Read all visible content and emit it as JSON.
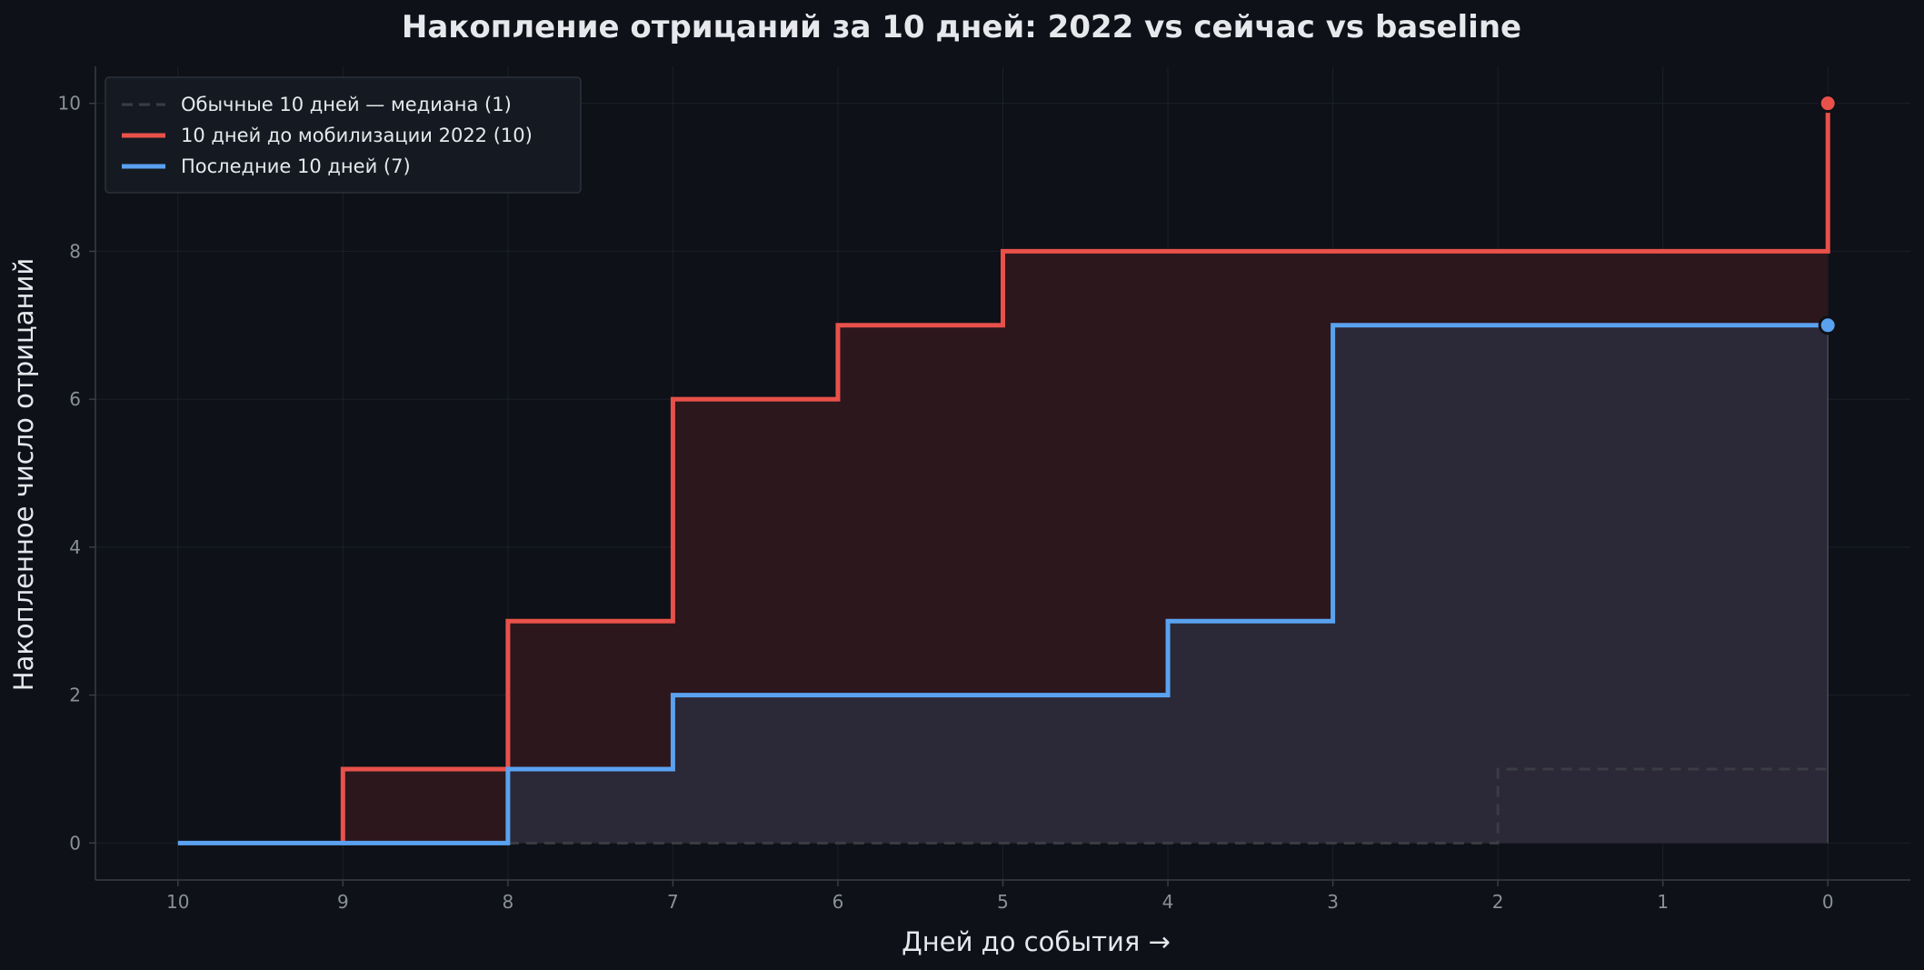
{
  "chart_data": {
    "type": "line",
    "step": "post",
    "title": "Накопление отрицаний за 10 дней: 2022 vs сейчас vs baseline",
    "xlabel": "Дней до события →",
    "ylabel": "Накопленное число отрицаний",
    "x_ticks": [
      10,
      9,
      8,
      7,
      6,
      5,
      4,
      3,
      2,
      1,
      0
    ],
    "y_ticks": [
      0,
      2,
      4,
      6,
      8,
      10
    ],
    "xlim": [
      10.5,
      -0.5
    ],
    "ylim": [
      -0.5,
      10.5
    ],
    "x_reversed": true,
    "grid": true,
    "legend_position": "top-left",
    "series": [
      {
        "name": "Обычные 10 дней — медиана (1)",
        "color": "#3a3d44",
        "style": "dashed",
        "x": [
          8,
          7,
          6,
          5,
          4,
          3,
          2,
          1,
          0
        ],
        "y": [
          0,
          0,
          0,
          0,
          0,
          0,
          1,
          1,
          1
        ]
      },
      {
        "name": "10 дней до мобилизации 2022 (10)",
        "color": "#e8514a",
        "style": "solid",
        "fill": "#2c171d",
        "x": [
          9,
          8,
          7,
          6,
          5,
          4,
          3,
          2,
          1,
          0,
          0
        ],
        "y": [
          1,
          3,
          6,
          7,
          8,
          8,
          8,
          8,
          8,
          8,
          10
        ]
      },
      {
        "name": "Последние 10 дней (7)",
        "color": "#5aa2f0",
        "style": "solid",
        "fill": "#2b2838",
        "x": [
          10,
          9,
          8,
          7,
          6,
          5,
          4,
          3,
          2,
          1,
          0
        ],
        "y": [
          0,
          0,
          1,
          2,
          2,
          2,
          3,
          7,
          7,
          7,
          7
        ]
      }
    ]
  }
}
